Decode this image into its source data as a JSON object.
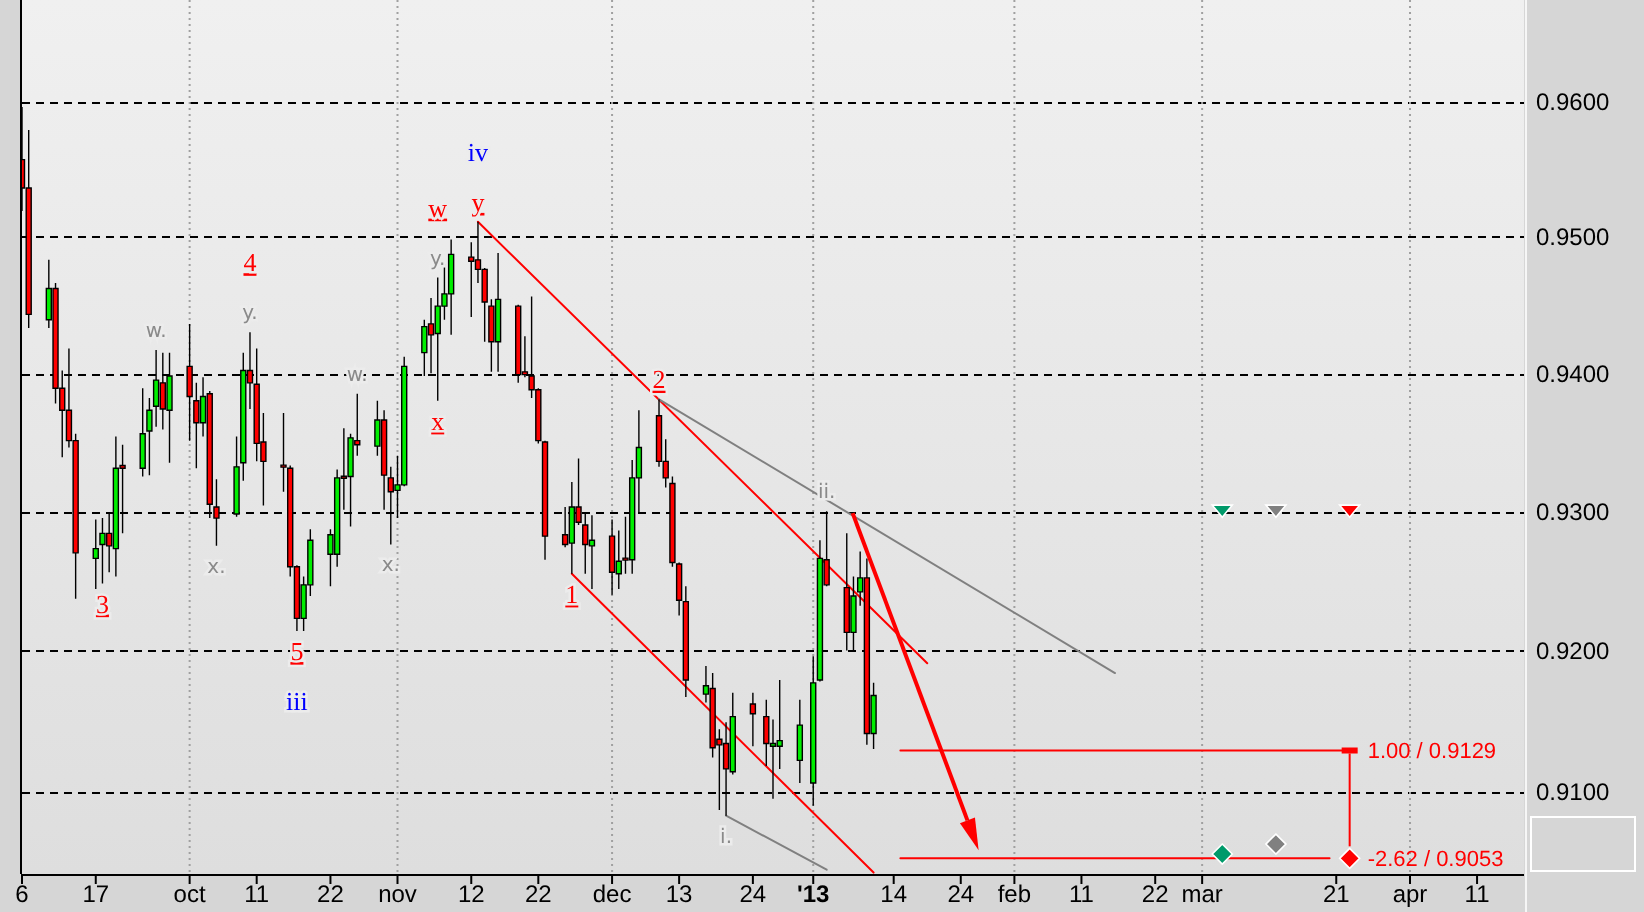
{
  "chart_data": {
    "type": "candlestick",
    "log": true,
    "grid": "y",
    "xlim": [
      "2012-09-06",
      "2013-04-18"
    ],
    "xticks": [
      {
        "value": "2012-09-06",
        "label": "6"
      },
      {
        "value": "2012-09-17",
        "label": "17"
      },
      {
        "value": "2012-10-01",
        "label": "oct"
      },
      {
        "value": "2012-10-11",
        "label": "11"
      },
      {
        "value": "2012-10-22",
        "label": "22"
      },
      {
        "value": "2012-11-01",
        "label": "nov"
      },
      {
        "value": "2012-11-12",
        "label": "12"
      },
      {
        "value": "2012-11-22",
        "label": "22"
      },
      {
        "value": "2012-12-03",
        "label": "dec"
      },
      {
        "value": "2012-12-13",
        "label": "13"
      },
      {
        "value": "2012-12-24",
        "label": "24"
      },
      {
        "value": "2013-01-02",
        "label": "'13"
      },
      {
        "value": "2013-01-14",
        "label": "14"
      },
      {
        "value": "2013-01-24",
        "label": "24"
      },
      {
        "value": "2013-02-01",
        "label": "feb"
      },
      {
        "value": "2013-02-11",
        "label": "11"
      },
      {
        "value": "2013-02-22",
        "label": "22"
      },
      {
        "value": "2013-03-01",
        "label": "mar"
      },
      {
        "value": "2013-03-21",
        "label": "21"
      },
      {
        "value": "2013-04-01",
        "label": "apr"
      },
      {
        "value": "2013-04-11",
        "label": "11"
      }
    ],
    "ylim": [
      0.9042,
      0.9676
    ],
    "yticks": [
      {
        "value": 0.91,
        "label": "0.9100"
      },
      {
        "value": 0.92,
        "label": "0.9200"
      },
      {
        "value": 0.93,
        "label": "0.9300"
      },
      {
        "value": 0.94,
        "label": "0.9400"
      },
      {
        "value": 0.95,
        "label": "0.9500"
      },
      {
        "value": 0.96,
        "label": "0.9600"
      }
    ],
    "ref_lines": [
      {
        "axis": "x",
        "value": "2012-10-01",
        "color": "#a0a0a0",
        "line_style": "dotted"
      },
      {
        "axis": "x",
        "value": "2012-11-01",
        "color": "#a0a0a0",
        "line_style": "dotted"
      },
      {
        "axis": "x",
        "value": "2012-12-03",
        "color": "#a0a0a0",
        "line_style": "dotted"
      },
      {
        "axis": "x",
        "value": "2013-01-02",
        "color": "#a0a0a0",
        "line_style": "dotted"
      },
      {
        "axis": "x",
        "value": "2013-02-01",
        "color": "#a0a0a0",
        "line_style": "dotted"
      },
      {
        "axis": "x",
        "value": "2013-03-01",
        "color": "#a0a0a0",
        "line_style": "dotted"
      },
      {
        "axis": "x",
        "value": "2013-04-01",
        "color": "#a0a0a0",
        "line_style": "dotted"
      }
    ],
    "series": [
      {
        "x": [
          "2012-09-06",
          "2012-09-07",
          "2012-09-10",
          "2012-09-11",
          "2012-09-12",
          "2012-09-13",
          "2012-09-14",
          "2012-09-17",
          "2012-09-18",
          "2012-09-19",
          "2012-09-20",
          "2012-09-21",
          "2012-09-24",
          "2012-09-25",
          "2012-09-26",
          "2012-09-27",
          "2012-09-28",
          "2012-10-01",
          "2012-10-02",
          "2012-10-03",
          "2012-10-04",
          "2012-10-05",
          "2012-10-08",
          "2012-10-09",
          "2012-10-10",
          "2012-10-11",
          "2012-10-12",
          "2012-10-15",
          "2012-10-16",
          "2012-10-17",
          "2012-10-18",
          "2012-10-19",
          "2012-10-22",
          "2012-10-23",
          "2012-10-24",
          "2012-10-25",
          "2012-10-26",
          "2012-10-29",
          "2012-10-30",
          "2012-10-31",
          "2012-11-01",
          "2012-11-02",
          "2012-11-05",
          "2012-11-06",
          "2012-11-07",
          "2012-11-08",
          "2012-11-09",
          "2012-11-12",
          "2012-11-13",
          "2012-11-14",
          "2012-11-15",
          "2012-11-16",
          "2012-11-19",
          "2012-11-20",
          "2012-11-21",
          "2012-11-22",
          "2012-11-23",
          "2012-11-26",
          "2012-11-27",
          "2012-11-28",
          "2012-11-29",
          "2012-11-30",
          "2012-12-03",
          "2012-12-04",
          "2012-12-05",
          "2012-12-06",
          "2012-12-07",
          "2012-12-10",
          "2012-12-11",
          "2012-12-12",
          "2012-12-13",
          "2012-12-14",
          "2012-12-17",
          "2012-12-18",
          "2012-12-19",
          "2012-12-20",
          "2012-12-21",
          "2012-12-24",
          "2012-12-26",
          "2012-12-27",
          "2012-12-28",
          "2012-12-31",
          "2013-01-02",
          "2013-01-03",
          "2013-01-04",
          "2013-01-07",
          "2013-01-08",
          "2013-01-09",
          "2013-01-10",
          "2013-01-11"
        ],
        "ohlc": [
          [
            0.9557,
            0.9596,
            0.9519,
            0.9536
          ],
          [
            0.9536,
            0.9579,
            0.9433,
            0.9443
          ],
          [
            0.9439,
            0.9483,
            0.9433,
            0.9462
          ],
          [
            0.9462,
            0.9466,
            0.9378,
            0.9389
          ],
          [
            0.9389,
            0.9402,
            0.9339,
            0.9373
          ],
          [
            0.9373,
            0.9418,
            0.9346,
            0.9351
          ],
          [
            0.9351,
            0.9356,
            0.9237,
            0.927
          ],
          [
            0.9266,
            0.9294,
            0.9244,
            0.9273
          ],
          [
            0.9276,
            0.9295,
            0.9248,
            0.9284
          ],
          [
            0.9284,
            0.9298,
            0.9256,
            0.9275
          ],
          [
            0.9273,
            0.9354,
            0.9253,
            0.9331
          ],
          [
            0.9333,
            0.9348,
            0.9284,
            0.9331
          ],
          [
            0.9331,
            0.9389,
            0.9325,
            0.9356
          ],
          [
            0.9358,
            0.9382,
            0.9326,
            0.9373
          ],
          [
            0.9376,
            0.9417,
            0.9361,
            0.9395
          ],
          [
            0.9393,
            0.9415,
            0.9359,
            0.9374
          ],
          [
            0.9373,
            0.9415,
            0.9335,
            0.9398
          ],
          [
            0.9405,
            0.9436,
            0.9351,
            0.9383
          ],
          [
            0.938,
            0.9393,
            0.9331,
            0.9364
          ],
          [
            0.9364,
            0.9397,
            0.9354,
            0.9383
          ],
          [
            0.9385,
            0.9387,
            0.9295,
            0.9305
          ],
          [
            0.9303,
            0.9323,
            0.9275,
            0.9295
          ],
          [
            0.9298,
            0.9354,
            0.9296,
            0.9332
          ],
          [
            0.9335,
            0.9415,
            0.9322,
            0.9402
          ],
          [
            0.9402,
            0.943,
            0.9374,
            0.9393
          ],
          [
            0.9392,
            0.9418,
            0.9336,
            0.9349
          ],
          [
            0.935,
            0.9371,
            0.9304,
            0.9336
          ],
          [
            0.9333,
            0.9371,
            0.9314,
            0.9332
          ],
          [
            0.9331,
            0.9333,
            0.9253,
            0.926
          ],
          [
            0.926,
            0.9261,
            0.9214,
            0.9223
          ],
          [
            0.9223,
            0.9253,
            0.9214,
            0.9247
          ],
          [
            0.9247,
            0.9287,
            0.9239,
            0.9279
          ],
          [
            0.9269,
            0.9287,
            0.9246,
            0.9283
          ],
          [
            0.9269,
            0.933,
            0.926,
            0.9324
          ],
          [
            0.9325,
            0.936,
            0.9301,
            0.9324
          ],
          [
            0.9325,
            0.9356,
            0.9289,
            0.9353
          ],
          [
            0.9351,
            0.9385,
            0.934,
            0.9348
          ],
          [
            0.9347,
            0.938,
            0.934,
            0.9366
          ],
          [
            0.9366,
            0.9373,
            0.9301,
            0.9326
          ],
          [
            0.9324,
            0.9332,
            0.9276,
            0.9314
          ],
          [
            0.9315,
            0.934,
            0.9295,
            0.9319
          ],
          [
            0.9319,
            0.9412,
            0.9318,
            0.9405
          ],
          [
            0.9415,
            0.9439,
            0.9398,
            0.9434
          ],
          [
            0.9436,
            0.9455,
            0.94,
            0.9428
          ],
          [
            0.9429,
            0.947,
            0.938,
            0.9449
          ],
          [
            0.9449,
            0.948,
            0.9439,
            0.9458
          ],
          [
            0.9458,
            0.9498,
            0.9428,
            0.9487
          ],
          [
            0.9485,
            0.9496,
            0.9441,
            0.9482
          ],
          [
            0.9483,
            0.9511,
            0.9466,
            0.9476
          ],
          [
            0.9476,
            0.9477,
            0.9423,
            0.9452
          ],
          [
            0.9449,
            0.9454,
            0.9401,
            0.9423
          ],
          [
            0.9423,
            0.9488,
            0.9401,
            0.9454
          ],
          [
            0.9449,
            0.945,
            0.9393,
            0.9399
          ],
          [
            0.9401,
            0.9427,
            0.9397,
            0.9399
          ],
          [
            0.9398,
            0.9456,
            0.9382,
            0.9388
          ],
          [
            0.9388,
            0.9389,
            0.9349,
            0.9351
          ],
          [
            0.935,
            0.9351,
            0.9265,
            0.9282
          ],
          [
            0.9283,
            0.9303,
            0.9274,
            0.9276
          ],
          [
            0.9277,
            0.9321,
            0.9255,
            0.9303
          ],
          [
            0.9303,
            0.9338,
            0.929,
            0.9292
          ],
          [
            0.929,
            0.9298,
            0.9255,
            0.9276
          ],
          [
            0.9275,
            0.9297,
            0.9244,
            0.9279
          ],
          [
            0.9282,
            0.9294,
            0.924,
            0.9256
          ],
          [
            0.9255,
            0.9286,
            0.9244,
            0.9264
          ],
          [
            0.9266,
            0.9296,
            0.9255,
            0.9265
          ],
          [
            0.9265,
            0.9337,
            0.9255,
            0.9324
          ],
          [
            0.9324,
            0.9373,
            0.9299,
            0.9346
          ],
          [
            0.9369,
            0.9381,
            0.9332,
            0.9336
          ],
          [
            0.9336,
            0.9352,
            0.9317,
            0.9324
          ],
          [
            0.932,
            0.9325,
            0.926,
            0.9263
          ],
          [
            0.9262,
            0.9263,
            0.9225,
            0.9236
          ],
          [
            0.9235,
            0.9246,
            0.9167,
            0.9179
          ],
          [
            0.9169,
            0.9189,
            0.9163,
            0.9175
          ],
          [
            0.9173,
            0.9184,
            0.9124,
            0.9131
          ],
          [
            0.9137,
            0.9144,
            0.9087,
            0.9133
          ],
          [
            0.9134,
            0.9149,
            0.9083,
            0.9116
          ],
          [
            0.9114,
            0.917,
            0.9112,
            0.9153
          ],
          [
            0.9162,
            0.917,
            0.9132,
            0.9155
          ],
          [
            0.9153,
            0.9165,
            0.9118,
            0.9134
          ],
          [
            0.9132,
            0.9151,
            0.9095,
            0.9134
          ],
          [
            0.9132,
            0.9179,
            0.9116,
            0.9136
          ],
          [
            0.9122,
            0.9165,
            0.9106,
            0.9147
          ],
          [
            0.9106,
            0.9196,
            0.909,
            0.9177
          ],
          [
            0.9179,
            0.9279,
            0.9178,
            0.9266
          ],
          [
            0.9265,
            0.93,
            0.9246,
            0.9247
          ],
          [
            0.9245,
            0.9284,
            0.92,
            0.9213
          ],
          [
            0.9213,
            0.9253,
            0.92,
            0.9239
          ],
          [
            0.9242,
            0.9271,
            0.9232,
            0.9252
          ],
          [
            0.9252,
            0.9266,
            0.9133,
            0.9141
          ],
          [
            0.9141,
            0.9177,
            0.913,
            0.9168
          ]
        ],
        "colors": [
          "#ff0000",
          "#ff0000",
          "#00ee00",
          "#ff0000",
          "#ff0000",
          "#ff0000",
          "#ff0000",
          "#00ee00",
          "#00ee00",
          "#ff0000",
          "#00ee00",
          "#ff0000",
          "#00ee00",
          "#00ee00",
          "#00ee00",
          "#ff0000",
          "#00ee00",
          "#ff0000",
          "#ff0000",
          "#00ee00",
          "#ff0000",
          "#ff0000",
          "#00ee00",
          "#00ee00",
          "#ff0000",
          "#ff0000",
          "#ff0000",
          "#ff0000",
          "#ff0000",
          "#ff0000",
          "#00ee00",
          "#00ee00",
          "#00ee00",
          "#00ee00",
          "#ff0000",
          "#00ee00",
          "#ff0000",
          "#00ee00",
          "#ff0000",
          "#ff0000",
          "#00ee00",
          "#00ee00",
          "#00ee00",
          "#ff0000",
          "#00ee00",
          "#00ee00",
          "#00ee00",
          "#ff0000",
          "#ff0000",
          "#ff0000",
          "#ff0000",
          "#00ee00",
          "#ff0000",
          "#ff0000",
          "#ff0000",
          "#ff0000",
          "#ff0000",
          "#ff0000",
          "#00ee00",
          "#ff0000",
          "#ff0000",
          "#00ee00",
          "#ff0000",
          "#00ee00",
          "#ff0000",
          "#00ee00",
          "#00ee00",
          "#ff0000",
          "#ff0000",
          "#ff0000",
          "#ff0000",
          "#ff0000",
          "#00ee00",
          "#ff0000",
          "#ff0000",
          "#ff0000",
          "#00ee00",
          "#ff0000",
          "#ff0000",
          "#00ee00",
          "#00ee00",
          "#00ee00",
          "#00ee00",
          "#00ee00",
          "#ff0000",
          "#ff0000",
          "#00ee00",
          "#00ee00",
          "#ff0000",
          "#00ee00"
        ]
      },
      {
        "type": "line",
        "x": [
          "2012-11-13",
          "2013-01-19"
        ],
        "values": [
          0.9511,
          0.9191
        ],
        "color": "#ff0000"
      },
      {
        "type": "line",
        "x": [
          "2012-11-27",
          "2013-01-11"
        ],
        "values": [
          0.9255,
          0.9043
        ],
        "color": "#ff0000"
      },
      {
        "type": "line",
        "x": [
          "2012-12-10",
          "2013-02-16"
        ],
        "values": [
          0.9381,
          0.9184
        ],
        "color": "#808080"
      },
      {
        "type": "line",
        "x": [
          "2012-12-20",
          "2013-01-04"
        ],
        "values": [
          0.9083,
          0.9045
        ],
        "color": "#808080"
      },
      {
        "type": "line",
        "x": [
          "2013-01-15",
          "2013-03-23"
        ],
        "values": [
          0.9129,
          0.9129
        ],
        "color": "#ff0000"
      },
      {
        "type": "line",
        "x": [
          "2013-01-15",
          "2013-03-20"
        ],
        "values": [
          0.9053,
          0.9053
        ],
        "color": "#ff0000"
      },
      {
        "type": "scatter",
        "marker": "triangle",
        "x": [
          "2013-03-04",
          "2013-03-12",
          "2013-03-23"
        ],
        "values": [
          0.93,
          0.93,
          0.93
        ],
        "colors": [
          "#009a6a",
          "#808080",
          "#ff0000"
        ]
      },
      {
        "type": "scatter",
        "marker": "diamond",
        "x": [
          "2013-03-04",
          "2013-03-12",
          "2013-03-23"
        ],
        "values": [
          0.9056,
          0.9063,
          0.9053
        ],
        "colors": [
          "#009a6a",
          "#808080",
          "#ff0000"
        ]
      }
    ],
    "annotations": [
      {
        "text": "3",
        "x": "2012-09-18",
        "y": 0.9248
      },
      {
        "text": "w.",
        "x": "2012-09-26",
        "y": 0.9417
      },
      {
        "text": "x.",
        "x": "2012-10-05",
        "y": 0.9275
      },
      {
        "text": "y.",
        "x": "2012-10-10",
        "y": 0.943
      },
      {
        "text": "4",
        "x": "2012-10-10",
        "y": 0.943
      },
      {
        "text": "5",
        "x": "2012-10-17",
        "y": 0.9214
      },
      {
        "text": "iii",
        "x": "2012-10-17",
        "y": 0.9214
      },
      {
        "text": "w.",
        "x": "2012-10-26",
        "y": 0.9385
      },
      {
        "text": "x.",
        "x": "2012-10-31",
        "y": 0.9276
      },
      {
        "text": "y.",
        "x": "2012-11-07",
        "y": 0.947
      },
      {
        "text": "w",
        "x": "2012-11-07",
        "y": 0.947
      },
      {
        "text": "x",
        "x": "2012-11-07",
        "y": 0.938
      },
      {
        "text": "y",
        "x": "2012-11-13",
        "y": 0.9511
      },
      {
        "text": "iv",
        "x": "2012-11-13",
        "y": 0.9511
      },
      {
        "text": "1",
        "x": "2012-11-27",
        "y": 0.9255
      },
      {
        "text": "2",
        "x": "2012-12-10",
        "y": 0.9381
      },
      {
        "text": "i.",
        "x": "2012-12-20",
        "y": 0.9083
      },
      {
        "text": "ii.",
        "x": "2013-01-04",
        "y": 0.93
      },
      {
        "text": "1.00 / 0.9129",
        "x": "2013-03-23",
        "y": 0.9129
      },
      {
        "text": "-2.62 / 0.9053",
        "x": "2013-03-23",
        "y": 0.9053
      }
    ]
  }
}
